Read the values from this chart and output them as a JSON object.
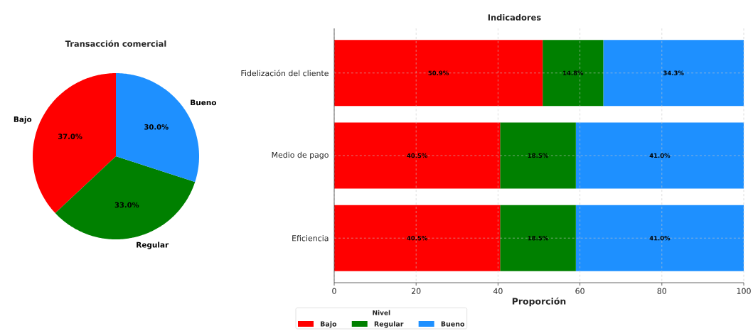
{
  "chart_data": [
    {
      "type": "pie",
      "title": "Transacción comercial",
      "categories": [
        "Bajo",
        "Regular",
        "Bueno"
      ],
      "values": [
        37,
        33,
        30
      ],
      "colors": [
        "#ff0000",
        "#008000",
        "#1e90ff"
      ],
      "value_labels": [
        "37.0%",
        "33.0%",
        "30.0%"
      ]
    },
    {
      "type": "bar",
      "orientation": "horizontal",
      "stacked": true,
      "title": "Indicadores",
      "xlabel": "Proporción",
      "legend_title": "Nivel",
      "legend": "bottom left",
      "grid": true,
      "categories": [
        "Fidelización del cliente",
        "Medio de pago",
        "Eficiencia"
      ],
      "xlim": [
        0,
        100
      ],
      "xticks": [
        0,
        20,
        40,
        60,
        80,
        100
      ],
      "series": [
        {
          "name": "Bajo",
          "color": "#ff0000",
          "values": [
            50.9,
            40.5,
            40.5
          ],
          "value_labels": [
            "50.9%",
            "40.5%",
            "40.5%"
          ]
        },
        {
          "name": "Regular",
          "color": "#008000",
          "values": [
            14.8,
            18.5,
            18.5
          ],
          "value_labels": [
            "14.8%",
            "18.5%",
            "18.5%"
          ]
        },
        {
          "name": "Bueno",
          "color": "#1e90ff",
          "values": [
            34.3,
            41.0,
            41.0
          ],
          "value_labels": [
            "34.3%",
            "41.0%",
            "41.0%"
          ]
        }
      ]
    }
  ]
}
